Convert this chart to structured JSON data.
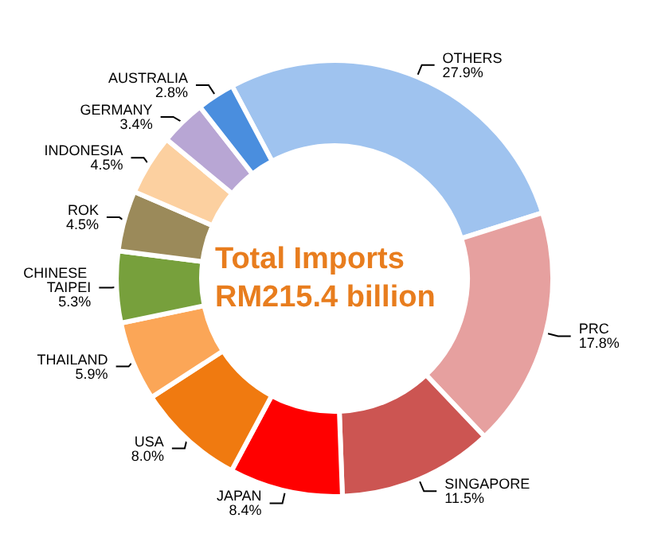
{
  "chart_data": {
    "type": "donut",
    "title": "Total Imports RM215.4 billion",
    "categories": [
      "OTHERS",
      "PRC",
      "SINGAPORE",
      "JAPAN",
      "USA",
      "THAILAND",
      "CHINESE TAIPEI",
      "ROK",
      "INDONESIA",
      "GERMANY",
      "AUSTRALIA"
    ],
    "values": [
      27.9,
      17.8,
      11.5,
      8.4,
      8.0,
      5.9,
      5.3,
      4.5,
      4.5,
      3.4,
      2.8
    ],
    "value_labels": [
      "27.9%",
      "17.8%",
      "11.5%",
      "8.4%",
      "8.0%",
      "5.9%",
      "5.3%",
      "4.5%",
      "4.5%",
      "3.4%",
      "2.8%"
    ],
    "colors": [
      "#9fc3ef",
      "#e6a09f",
      "#cc5552",
      "#ff0000",
      "#f07a10",
      "#fba657",
      "#77a03c",
      "#9b8a5a",
      "#fcd0a0",
      "#b8a6d4",
      "#4a8ede"
    ],
    "legend": false
  }
}
